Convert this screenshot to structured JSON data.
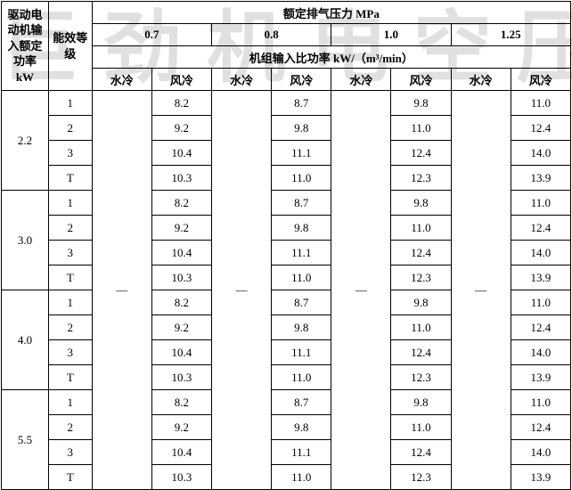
{
  "watermark": "巨劲机电空压机",
  "header": {
    "col1": "驱动电动机输入额定功率\nkW",
    "col2": "能效等级",
    "top": "额定排气压力 MPa",
    "pressures": [
      "0.7",
      "0.8",
      "1.0",
      "1.25"
    ],
    "row2": "机组输入比功率 kW/（m³/min）",
    "cool_water": "水冷",
    "cool_air": "风冷"
  },
  "dash": "—",
  "groups": [
    {
      "power": "2.2",
      "rows": [
        {
          "g": "1",
          "v": [
            "8.2",
            "8.7",
            "9.8",
            "11.0"
          ]
        },
        {
          "g": "2",
          "v": [
            "9.2",
            "9.8",
            "11.0",
            "12.4"
          ]
        },
        {
          "g": "3",
          "v": [
            "10.4",
            "11.1",
            "12.4",
            "14.0"
          ]
        },
        {
          "g": "T",
          "v": [
            "10.3",
            "11.0",
            "12.3",
            "13.9"
          ]
        }
      ]
    },
    {
      "power": "3.0",
      "rows": [
        {
          "g": "1",
          "v": [
            "8.2",
            "8.7",
            "9.8",
            "11.0"
          ]
        },
        {
          "g": "2",
          "v": [
            "9.2",
            "9.8",
            "11.0",
            "12.4"
          ]
        },
        {
          "g": "3",
          "v": [
            "10.4",
            "11.1",
            "12.4",
            "14.0"
          ]
        },
        {
          "g": "T",
          "v": [
            "10.3",
            "11.0",
            "12.3",
            "13.9"
          ]
        }
      ]
    },
    {
      "power": "4.0",
      "rows": [
        {
          "g": "1",
          "v": [
            "8.2",
            "8.7",
            "9.8",
            "11.0"
          ]
        },
        {
          "g": "2",
          "v": [
            "9.2",
            "9.8",
            "11.0",
            "12.4"
          ]
        },
        {
          "g": "3",
          "v": [
            "10.4",
            "11.1",
            "12.4",
            "14.0"
          ]
        },
        {
          "g": "T",
          "v": [
            "10.3",
            "11.0",
            "12.3",
            "13.9"
          ]
        }
      ]
    },
    {
      "power": "5.5",
      "rows": [
        {
          "g": "1",
          "v": [
            "8.2",
            "8.7",
            "9.8",
            "11.0"
          ]
        },
        {
          "g": "2",
          "v": [
            "9.2",
            "9.8",
            "11.0",
            "12.4"
          ]
        },
        {
          "g": "3",
          "v": [
            "10.4",
            "11.1",
            "12.4",
            "14.0"
          ]
        },
        {
          "g": "T",
          "v": [
            "10.3",
            "11.0",
            "12.3",
            "13.9"
          ]
        }
      ]
    }
  ]
}
